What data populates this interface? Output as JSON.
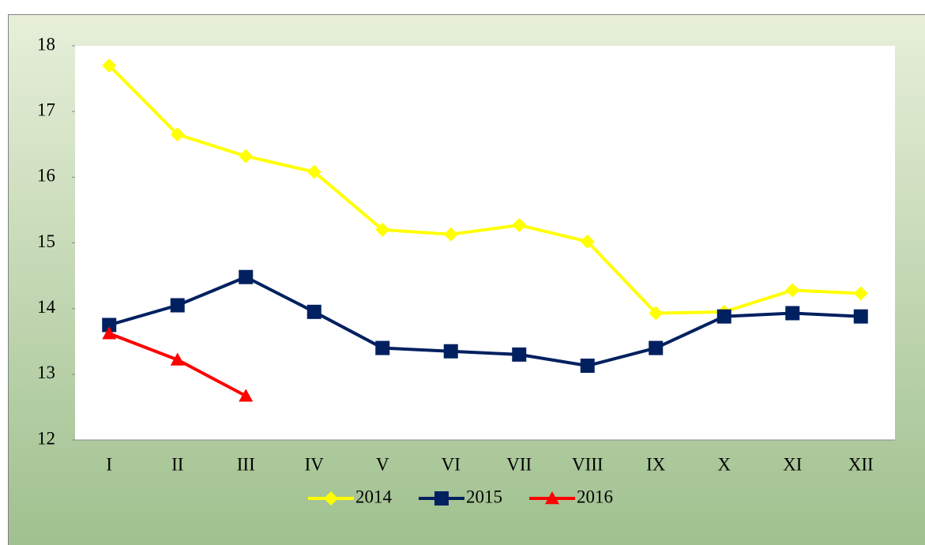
{
  "chart_data": {
    "type": "line",
    "categories": [
      "I",
      "II",
      "III",
      "IV",
      "V",
      "VI",
      "VII",
      "VIII",
      "IX",
      "X",
      "XI",
      "XII"
    ],
    "series": [
      {
        "name": "2014",
        "color": "#ffff00",
        "marker": "diamond",
        "values": [
          17.7,
          16.65,
          16.32,
          16.08,
          15.2,
          15.13,
          15.27,
          15.02,
          13.93,
          13.95,
          14.28,
          14.23
        ]
      },
      {
        "name": "2015",
        "color": "#002060",
        "marker": "square",
        "values": [
          13.75,
          14.05,
          14.48,
          13.95,
          13.4,
          13.35,
          13.3,
          13.13,
          13.4,
          13.88,
          13.93,
          13.88
        ]
      },
      {
        "name": "2016",
        "color": "#ff0000",
        "marker": "triangle",
        "values": [
          13.62,
          13.22,
          12.67,
          null,
          null,
          null,
          null,
          null,
          null,
          null,
          null,
          null
        ]
      }
    ],
    "ylim": [
      12,
      18
    ],
    "yticks": [
      12,
      13,
      14,
      15,
      16,
      17,
      18
    ],
    "grid": false,
    "legend": "bottom"
  }
}
